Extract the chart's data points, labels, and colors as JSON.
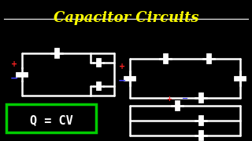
{
  "title": "Capacitor Circuits",
  "title_color": "#FFFF00",
  "bg_color": "#000000",
  "line_color": "#FFFFFF",
  "line_width": 1.8,
  "formula": "Q = CV",
  "formula_box_color": "#00CC00",
  "formula_text_color": "#FFFFFF",
  "plus_color": "#FF2222",
  "minus_color": "#4444FF"
}
